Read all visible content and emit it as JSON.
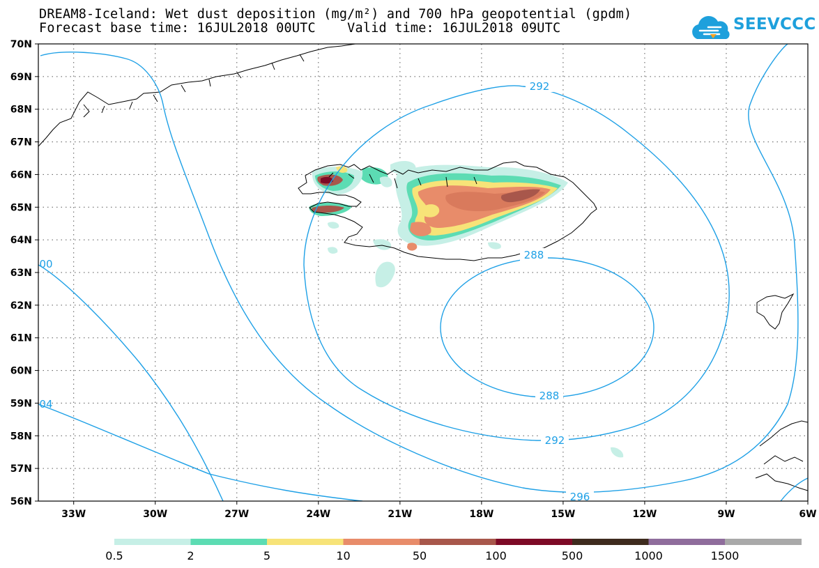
{
  "title": {
    "line1": "DREAM8-Iceland: Wet dust deposition (mg/m²) and 700 hPa geopotential (gpdm)",
    "line2": "Forecast base time: 16JUL2018 00UTC    Valid time: 16JUL2018 09UTC"
  },
  "logo": {
    "text": "SEEVCCC",
    "icon": "cloud-icon",
    "color": "#1ea0dc"
  },
  "lat_labels": [
    "70N",
    "69N",
    "68N",
    "67N",
    "66N",
    "65N",
    "64N",
    "63N",
    "62N",
    "61N",
    "60N",
    "59N",
    "58N",
    "57N",
    "56N"
  ],
  "lon_labels": [
    "33W",
    "30W",
    "27W",
    "24W",
    "21W",
    "18W",
    "15W",
    "12W",
    "9W",
    "6W"
  ],
  "contour_labels": [
    "292",
    "288",
    "288",
    "292",
    "296",
    "00",
    "04"
  ],
  "legend": {
    "colors": [
      "#c6efe6",
      "#5cdcb3",
      "#f7e378",
      "#e88c6a",
      "#a8574b",
      "#7d0a26",
      "#3e2b1e",
      "#8f6d9c",
      "#a9a9a9"
    ],
    "labels": [
      "0.5",
      "2",
      "5",
      "10",
      "50",
      "100",
      "500",
      "1000",
      "1500"
    ]
  },
  "colors": {
    "contour": "#1ea0e6",
    "coast": "#000000",
    "grid": "#555555"
  }
}
